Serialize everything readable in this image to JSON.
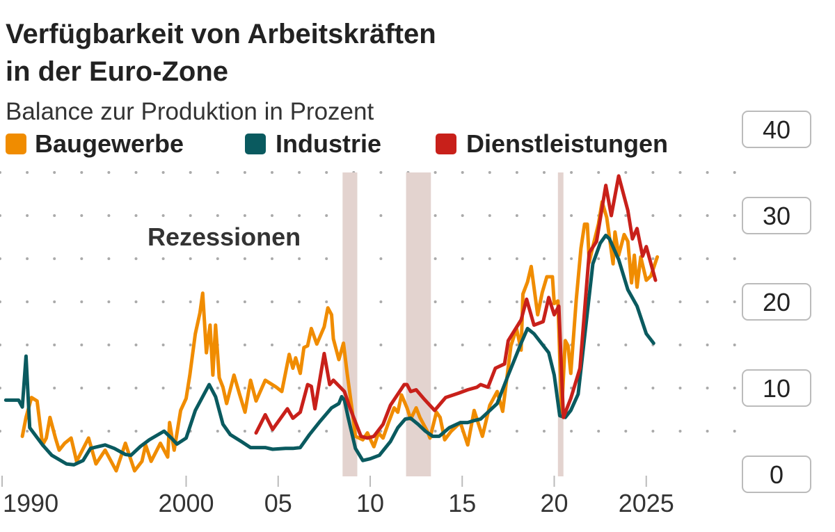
{
  "chart_data": {
    "type": "line",
    "title": "Verfügbarkeit von Arbeitskräften in der Euro-Zone",
    "title_lines": [
      "Verfügbarkeit von Arbeitskräften",
      "in der Euro-Zone"
    ],
    "subtitle": "Balance zur Produktion in Prozent",
    "legend_placement": "top-left",
    "grid": "dotted",
    "y_axis_side": "right",
    "ylim": [
      0,
      40
    ],
    "xlim": [
      1990,
      2026.5
    ],
    "y_ticks": [
      "0",
      "10",
      "20",
      "30",
      "40"
    ],
    "x_ticks": [
      {
        "year": 1990,
        "label": "1990"
      },
      {
        "year": 2000,
        "label": "2000"
      },
      {
        "year": 2005,
        "label": "05"
      },
      {
        "year": 2010,
        "label": "10"
      },
      {
        "year": 2015,
        "label": "15"
      },
      {
        "year": 2020,
        "label": "20"
      },
      {
        "year": 2025,
        "label": "2025"
      }
    ],
    "annotation": "Rezessionen",
    "recessions": [
      [
        2008.5,
        2009.3
      ],
      [
        2011.95,
        2013.3
      ],
      [
        2020.2,
        2020.5
      ]
    ],
    "recession_color": "#e3d3cf",
    "series": [
      {
        "name": "Baugewerbe",
        "color": "#f08c00",
        "points": [
          [
            1991.1,
            4.4
          ],
          [
            1991.3,
            6.6
          ],
          [
            1991.6,
            8.9
          ],
          [
            1991.9,
            8.5
          ],
          [
            1992.2,
            3.4
          ],
          [
            1992.4,
            4.2
          ],
          [
            1992.6,
            6.6
          ],
          [
            1992.9,
            4.2
          ],
          [
            1993.1,
            2.8
          ],
          [
            1993.4,
            3.6
          ],
          [
            1993.75,
            4.2
          ],
          [
            1994.05,
            1.5
          ],
          [
            1994.7,
            4.2
          ],
          [
            1995.1,
            1.2
          ],
          [
            1995.6,
            2.8
          ],
          [
            1996.2,
            0.4
          ],
          [
            1996.7,
            3.6
          ],
          [
            1997.2,
            0.4
          ],
          [
            1997.6,
            1.5
          ],
          [
            1997.8,
            3.4
          ],
          [
            1998.1,
            1.5
          ],
          [
            1998.6,
            3.6
          ],
          [
            1999.0,
            2.0
          ],
          [
            1999.1,
            6.0
          ],
          [
            1999.35,
            2.8
          ],
          [
            1999.7,
            7.4
          ],
          [
            2000.0,
            8.8
          ],
          [
            2000.2,
            11.5
          ],
          [
            2000.5,
            16.3
          ],
          [
            2000.75,
            18.7
          ],
          [
            2000.9,
            21.0
          ],
          [
            2001.1,
            14.1
          ],
          [
            2001.3,
            17.3
          ],
          [
            2001.45,
            11.5
          ],
          [
            2001.6,
            17.3
          ],
          [
            2001.8,
            11.2
          ],
          [
            2002.0,
            10.1
          ],
          [
            2002.2,
            8.2
          ],
          [
            2002.6,
            11.5
          ],
          [
            2002.9,
            9.3
          ],
          [
            2003.2,
            7.2
          ],
          [
            2003.5,
            10.9
          ],
          [
            2003.8,
            8.5
          ],
          [
            2004.3,
            10.9
          ],
          [
            2004.9,
            10.1
          ],
          [
            2005.2,
            9.6
          ],
          [
            2005.6,
            13.9
          ],
          [
            2005.8,
            12.3
          ],
          [
            2005.95,
            13.5
          ],
          [
            2006.2,
            11.7
          ],
          [
            2006.4,
            14.7
          ],
          [
            2006.6,
            14.9
          ],
          [
            2006.8,
            16.9
          ],
          [
            2007.1,
            15.1
          ],
          [
            2007.5,
            17.1
          ],
          [
            2007.7,
            19.3
          ],
          [
            2007.9,
            18.5
          ],
          [
            2008.0,
            15.7
          ],
          [
            2008.3,
            13.3
          ],
          [
            2008.55,
            15.2
          ],
          [
            2008.75,
            11.7
          ],
          [
            2009.0,
            7.7
          ],
          [
            2009.2,
            4.4
          ],
          [
            2009.6,
            4.0
          ],
          [
            2009.85,
            4.8
          ],
          [
            2010.2,
            3.2
          ],
          [
            2010.45,
            4.8
          ],
          [
            2010.7,
            4.2
          ],
          [
            2011.0,
            6.0
          ],
          [
            2011.3,
            7.7
          ],
          [
            2011.5,
            7.2
          ],
          [
            2011.7,
            9.2
          ],
          [
            2012.0,
            7.7
          ],
          [
            2012.2,
            6.4
          ],
          [
            2012.5,
            7.7
          ],
          [
            2012.7,
            6.6
          ],
          [
            2013.1,
            5.0
          ],
          [
            2013.25,
            4.2
          ],
          [
            2013.6,
            7.2
          ],
          [
            2013.8,
            6.6
          ],
          [
            2014.05,
            4.0
          ],
          [
            2014.4,
            5.0
          ],
          [
            2014.9,
            6.0
          ],
          [
            2015.3,
            3.4
          ],
          [
            2015.65,
            7.4
          ],
          [
            2016.1,
            4.4
          ],
          [
            2016.5,
            8.0
          ],
          [
            2016.9,
            9.6
          ],
          [
            2017.2,
            7.3
          ],
          [
            2017.65,
            14.9
          ],
          [
            2017.95,
            16.9
          ],
          [
            2018.2,
            14.4
          ],
          [
            2018.3,
            20.9
          ],
          [
            2018.55,
            22.3
          ],
          [
            2018.75,
            24.1
          ],
          [
            2019.1,
            18.5
          ],
          [
            2019.35,
            21.1
          ],
          [
            2019.6,
            22.9
          ],
          [
            2019.9,
            22.9
          ],
          [
            2020.0,
            19.8
          ],
          [
            2020.2,
            20.1
          ],
          [
            2020.4,
            7.2
          ],
          [
            2020.6,
            15.5
          ],
          [
            2020.75,
            14.9
          ],
          [
            2020.9,
            11.7
          ],
          [
            2021.2,
            20.3
          ],
          [
            2021.45,
            26.2
          ],
          [
            2021.65,
            29.0
          ],
          [
            2021.8,
            29.0
          ],
          [
            2021.9,
            24.6
          ],
          [
            2022.1,
            26.4
          ],
          [
            2022.4,
            29.0
          ],
          [
            2022.6,
            31.6
          ],
          [
            2022.85,
            29.8
          ],
          [
            2023.2,
            24.4
          ],
          [
            2023.3,
            28.1
          ],
          [
            2023.5,
            25.4
          ],
          [
            2023.8,
            27.8
          ],
          [
            2024.0,
            27.0
          ],
          [
            2024.2,
            22.2
          ],
          [
            2024.35,
            25.4
          ],
          [
            2024.5,
            21.7
          ],
          [
            2024.7,
            25.2
          ],
          [
            2025.0,
            22.5
          ],
          [
            2025.25,
            23.0
          ],
          [
            2025.6,
            25.2
          ]
        ]
      },
      {
        "name": "Industrie",
        "color": "#0a5a5f",
        "points": [
          [
            1990.2,
            8.6
          ],
          [
            1990.9,
            8.6
          ],
          [
            1991.1,
            7.8
          ],
          [
            1991.3,
            13.7
          ],
          [
            1991.5,
            5.4
          ],
          [
            1992.2,
            3.4
          ],
          [
            1992.7,
            2.2
          ],
          [
            1993.5,
            1.2
          ],
          [
            1993.9,
            1.1
          ],
          [
            1994.4,
            1.6
          ],
          [
            1994.8,
            3.0
          ],
          [
            1995.6,
            3.4
          ],
          [
            1996.1,
            3.0
          ],
          [
            1996.7,
            2.3
          ],
          [
            1997.0,
            2.2
          ],
          [
            1997.5,
            3.2
          ],
          [
            1998.0,
            4.0
          ],
          [
            1998.8,
            5.0
          ],
          [
            1999.2,
            4.2
          ],
          [
            1999.5,
            3.5
          ],
          [
            2000.0,
            4.2
          ],
          [
            2000.5,
            7.4
          ],
          [
            2001.25,
            10.4
          ],
          [
            2001.6,
            9.0
          ],
          [
            2002.0,
            5.8
          ],
          [
            2002.4,
            4.6
          ],
          [
            2003.0,
            3.8
          ],
          [
            2003.5,
            3.1
          ],
          [
            2004.3,
            3.1
          ],
          [
            2004.7,
            2.9
          ],
          [
            2005.4,
            3.0
          ],
          [
            2005.8,
            3.0
          ],
          [
            2006.2,
            3.1
          ],
          [
            2006.7,
            4.6
          ],
          [
            2007.3,
            6.2
          ],
          [
            2007.9,
            7.7
          ],
          [
            2008.3,
            8.2
          ],
          [
            2008.45,
            9.0
          ],
          [
            2008.6,
            8.6
          ],
          [
            2008.8,
            6.6
          ],
          [
            2009.2,
            3.0
          ],
          [
            2009.6,
            1.6
          ],
          [
            2010.0,
            1.8
          ],
          [
            2010.5,
            2.2
          ],
          [
            2011.1,
            3.8
          ],
          [
            2011.5,
            5.4
          ],
          [
            2011.9,
            6.4
          ],
          [
            2012.2,
            6.5
          ],
          [
            2012.6,
            5.8
          ],
          [
            2013.0,
            5.0
          ],
          [
            2013.4,
            4.4
          ],
          [
            2013.75,
            4.4
          ],
          [
            2014.3,
            5.4
          ],
          [
            2014.9,
            6.0
          ],
          [
            2015.3,
            6.0
          ],
          [
            2015.6,
            6.2
          ],
          [
            2016.0,
            6.4
          ],
          [
            2016.9,
            8.2
          ],
          [
            2017.5,
            11.5
          ],
          [
            2018.2,
            15.2
          ],
          [
            2018.55,
            16.9
          ],
          [
            2018.9,
            16.3
          ],
          [
            2019.3,
            15.2
          ],
          [
            2019.7,
            14.1
          ],
          [
            2020.0,
            11.5
          ],
          [
            2020.3,
            6.8
          ],
          [
            2020.6,
            6.6
          ],
          [
            2020.9,
            7.4
          ],
          [
            2021.3,
            9.3
          ],
          [
            2021.7,
            16.9
          ],
          [
            2022.1,
            24.4
          ],
          [
            2022.5,
            26.8
          ],
          [
            2022.8,
            27.7
          ],
          [
            2023.0,
            27.3
          ],
          [
            2023.5,
            24.9
          ],
          [
            2024.0,
            21.4
          ],
          [
            2024.5,
            19.5
          ],
          [
            2025.0,
            16.3
          ],
          [
            2025.4,
            15.2
          ]
        ]
      },
      {
        "name": "Dienstleistungen",
        "color": "#c8201a",
        "points": [
          [
            2003.8,
            4.8
          ],
          [
            2004.3,
            6.9
          ],
          [
            2004.7,
            5.2
          ],
          [
            2004.9,
            5.8
          ],
          [
            2005.5,
            7.6
          ],
          [
            2005.8,
            6.5
          ],
          [
            2006.2,
            7.2
          ],
          [
            2006.6,
            10.4
          ],
          [
            2006.8,
            10.2
          ],
          [
            2007.0,
            7.6
          ],
          [
            2007.5,
            14.0
          ],
          [
            2007.8,
            10.4
          ],
          [
            2008.0,
            10.9
          ],
          [
            2008.6,
            9.6
          ],
          [
            2008.9,
            7.7
          ],
          [
            2009.5,
            4.4
          ],
          [
            2009.85,
            4.2
          ],
          [
            2010.2,
            4.4
          ],
          [
            2010.7,
            5.8
          ],
          [
            2011.1,
            8.0
          ],
          [
            2011.85,
            10.4
          ],
          [
            2012.0,
            10.4
          ],
          [
            2012.2,
            9.6
          ],
          [
            2012.5,
            9.8
          ],
          [
            2012.9,
            8.8
          ],
          [
            2013.5,
            7.4
          ],
          [
            2014.1,
            8.9
          ],
          [
            2014.8,
            9.4
          ],
          [
            2015.3,
            9.8
          ],
          [
            2015.8,
            10.1
          ],
          [
            2016.0,
            10.4
          ],
          [
            2016.4,
            10.1
          ],
          [
            2016.8,
            12.3
          ],
          [
            2017.3,
            12.8
          ],
          [
            2017.5,
            15.5
          ],
          [
            2018.2,
            17.9
          ],
          [
            2018.5,
            20.3
          ],
          [
            2018.9,
            17.3
          ],
          [
            2019.4,
            17.7
          ],
          [
            2019.7,
            20.5
          ],
          [
            2020.0,
            18.5
          ],
          [
            2020.25,
            19.5
          ],
          [
            2020.5,
            6.6
          ],
          [
            2020.9,
            8.8
          ],
          [
            2021.4,
            12.3
          ],
          [
            2021.9,
            25.7
          ],
          [
            2022.3,
            27.0
          ],
          [
            2022.8,
            33.5
          ],
          [
            2023.1,
            30.0
          ],
          [
            2023.5,
            34.6
          ],
          [
            2024.0,
            30.6
          ],
          [
            2024.25,
            27.3
          ],
          [
            2024.5,
            28.5
          ],
          [
            2024.8,
            25.3
          ],
          [
            2025.0,
            26.4
          ],
          [
            2025.5,
            22.5
          ]
        ]
      }
    ]
  }
}
